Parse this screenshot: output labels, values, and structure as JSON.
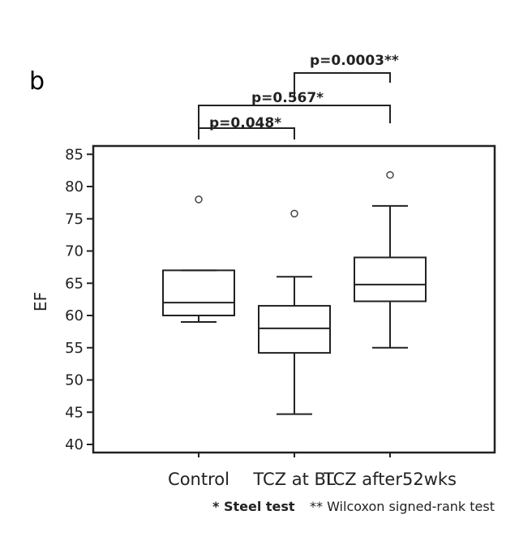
{
  "chart_data": {
    "type": "box",
    "panel_label": "b",
    "ylabel": "EF",
    "ylim": [
      39,
      86
    ],
    "yticks": [
      40,
      45,
      50,
      55,
      60,
      65,
      70,
      75,
      80,
      85
    ],
    "categories": [
      "Control",
      "TCZ at BL",
      "TCZ after52wks"
    ],
    "boxes": [
      {
        "whisker_low": 59,
        "q1": 60,
        "median": 62,
        "q3": 67,
        "whisker_high": 67,
        "outliers": [
          78
        ]
      },
      {
        "whisker_low": 44.7,
        "q1": 54.2,
        "median": 58,
        "q3": 61.5,
        "whisker_high": 66,
        "outliers": [
          75.8
        ]
      },
      {
        "whisker_low": 55,
        "q1": 62.2,
        "median": 64.8,
        "q3": 69,
        "whisker_high": 77,
        "outliers": [
          81.8
        ]
      }
    ],
    "comparisons": [
      {
        "from": 0,
        "to": 1,
        "label": "p=0.048*"
      },
      {
        "from": 0,
        "to": 2,
        "label": "p=0.567*"
      },
      {
        "from": 1,
        "to": 2,
        "label": "p=0.0003**"
      }
    ],
    "footnotes": {
      "steel": "* Steel test",
      "wilcoxon": "** Wilcoxon signed-rank test"
    }
  }
}
